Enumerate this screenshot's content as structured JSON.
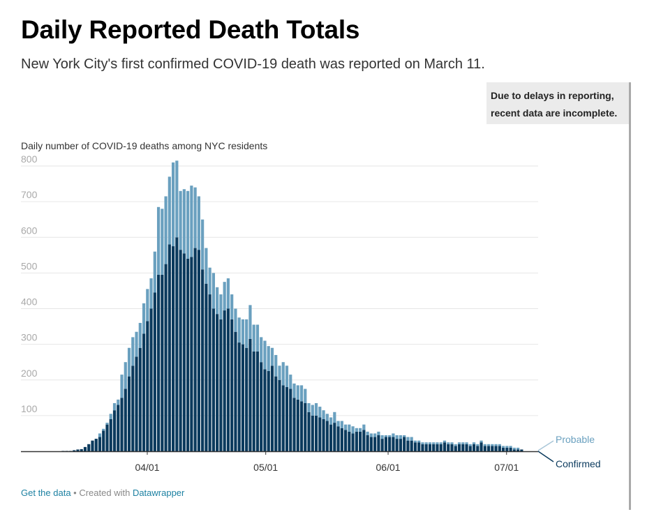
{
  "title": "Daily Reported Death Totals",
  "subtitle": "New York City's first confirmed COVID-19 death was reported on March 11.",
  "note": {
    "line1": "Due to delays in reporting,",
    "line2": "recent data are incomplete."
  },
  "footer": {
    "get_data": "Get the data",
    "separator": " • Created with ",
    "datawrapper": "Datawrapper"
  },
  "colors": {
    "confirmed": "#0b3a5d",
    "probable": "#6aa0bf",
    "grid": "#e6e6e6",
    "axis": "#333333",
    "link": "#1d81a2"
  },
  "chart_data": {
    "type": "bar",
    "stacked": true,
    "description": "Daily number of COVID-19 deaths among NYC residents",
    "x_start": "2020-02-29",
    "x_end": "2020-07-09",
    "xtick_labels": [
      "04/01",
      "05/01",
      "06/01",
      "07/01"
    ],
    "xtick_dates": [
      "2020-04-01",
      "2020-05-01",
      "2020-06-01",
      "2020-07-01"
    ],
    "y_ticks": [
      100,
      200,
      300,
      400,
      500,
      600,
      700,
      800
    ],
    "ylim": [
      0,
      800
    ],
    "grid": true,
    "legend": "right, at end of bars",
    "series": [
      {
        "name": "Confirmed",
        "values": [
          0,
          0,
          0,
          0,
          0,
          0,
          0,
          0,
          0,
          0,
          0,
          1,
          1,
          1,
          3,
          5,
          6,
          12,
          20,
          30,
          35,
          40,
          58,
          75,
          90,
          115,
          130,
          150,
          175,
          210,
          240,
          265,
          290,
          330,
          365,
          400,
          445,
          495,
          495,
          525,
          580,
          575,
          600,
          565,
          555,
          540,
          545,
          570,
          565,
          510,
          470,
          440,
          400,
          385,
          370,
          395,
          400,
          370,
          335,
          305,
          300,
          290,
          315,
          280,
          280,
          250,
          230,
          225,
          240,
          210,
          200,
          185,
          180,
          175,
          150,
          145,
          140,
          135,
          110,
          100,
          100,
          95,
          90,
          85,
          75,
          80,
          70,
          65,
          60,
          55,
          50,
          55,
          55,
          60,
          45,
          40,
          40,
          45,
          35,
          40,
          40,
          40,
          35,
          35,
          40,
          30,
          30,
          25,
          25,
          20,
          20,
          20,
          20,
          20,
          20,
          25,
          20,
          20,
          15,
          20,
          20,
          20,
          15,
          20,
          15,
          25,
          15,
          15,
          15,
          15,
          15,
          10,
          10,
          10,
          5,
          5,
          5,
          0,
          0,
          0,
          0
        ]
      },
      {
        "name": "Probable",
        "values": [
          0,
          0,
          0,
          0,
          0,
          0,
          0,
          0,
          0,
          0,
          0,
          0,
          0,
          0,
          0,
          0,
          0,
          0,
          0,
          0,
          0,
          10,
          5,
          5,
          15,
          20,
          15,
          65,
          75,
          80,
          80,
          70,
          70,
          85,
          90,
          85,
          115,
          190,
          185,
          190,
          190,
          235,
          215,
          165,
          180,
          190,
          200,
          170,
          150,
          140,
          100,
          75,
          100,
          75,
          70,
          80,
          85,
          70,
          65,
          70,
          70,
          80,
          95,
          75,
          75,
          70,
          80,
          70,
          50,
          60,
          40,
          65,
          60,
          40,
          40,
          40,
          45,
          40,
          25,
          30,
          35,
          30,
          25,
          20,
          20,
          30,
          15,
          20,
          15,
          20,
          20,
          10,
          10,
          15,
          10,
          10,
          10,
          10,
          10,
          5,
          5,
          10,
          10,
          10,
          5,
          10,
          10,
          5,
          5,
          5,
          5,
          5,
          5,
          5,
          5,
          5,
          5,
          5,
          5,
          5,
          5,
          5,
          5,
          5,
          5,
          5,
          5,
          5,
          5,
          5,
          5,
          5,
          5,
          5,
          5,
          5,
          0,
          0,
          0,
          0,
          0
        ]
      }
    ]
  }
}
